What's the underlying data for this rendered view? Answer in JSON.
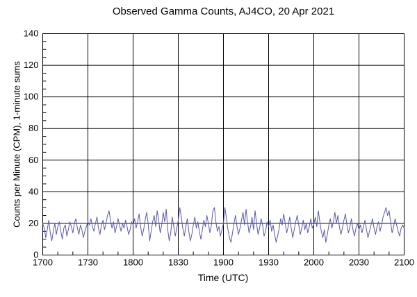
{
  "chart_data": {
    "type": "line",
    "title": "Observed Gamma Counts, AJ4CO, 20 Apr 2021",
    "xlabel": "Time (UTC)",
    "ylabel": "Counts per Minute (CPM), 1-minute sums",
    "x_tick_labels": [
      "1700",
      "1730",
      "1800",
      "1830",
      "1900",
      "1930",
      "2000",
      "2030",
      "2100"
    ],
    "xlim_minutes": [
      0,
      240
    ],
    "x_major_step_minutes": 30,
    "x_minor_step_minutes": 10,
    "x_sample_step_minutes": 1,
    "ylim": [
      0,
      140
    ],
    "y_ticks": [
      0,
      20,
      40,
      60,
      80,
      100,
      120,
      140
    ],
    "y_minor_step": 5,
    "grid": true,
    "legend": "none",
    "colors": {
      "line": "#5858b0",
      "axis": "#000000",
      "background": "#ffffff"
    },
    "series": [
      {
        "name": "Gamma counts, 1-minute sums (CPM)",
        "values": [
          20,
          17,
          11,
          16,
          22,
          14,
          9,
          15,
          20,
          13,
          18,
          21,
          15,
          10,
          17,
          19,
          12,
          16,
          21,
          18,
          14,
          20,
          23,
          17,
          13,
          19,
          16,
          11,
          15,
          18,
          21,
          19,
          23,
          18,
          15,
          20,
          24,
          17,
          13,
          19,
          22,
          16,
          20,
          25,
          28,
          22,
          17,
          21,
          14,
          18,
          23,
          19,
          15,
          20,
          17,
          22,
          18,
          13,
          16,
          21,
          19,
          23,
          17,
          21,
          26,
          18,
          12,
          16,
          22,
          27,
          20,
          9,
          15,
          21,
          25,
          18,
          28,
          22,
          14,
          19,
          27,
          21,
          29,
          16,
          9,
          14,
          24,
          18,
          12,
          17,
          22,
          30,
          24,
          17,
          12,
          18,
          23,
          15,
          9,
          13,
          19,
          24,
          17,
          21,
          15,
          10,
          16,
          22,
          18,
          25,
          20,
          14,
          19,
          28,
          30,
          21,
          15,
          18,
          12,
          16,
          20,
          30,
          23,
          16,
          11,
          8,
          14,
          20,
          25,
          18,
          13,
          17,
          22,
          27,
          19,
          29,
          21,
          14,
          18,
          24,
          16,
          28,
          20,
          13,
          17,
          23,
          19,
          12,
          15,
          21,
          18,
          22,
          15,
          19,
          13,
          8,
          12,
          17,
          23,
          19,
          26,
          20,
          14,
          18,
          24,
          17,
          11,
          16,
          21,
          25,
          19,
          13,
          17,
          22,
          16,
          20,
          14,
          18,
          23,
          17,
          19,
          24,
          18,
          28,
          21,
          15,
          11,
          16,
          8,
          13,
          19,
          23,
          17,
          21,
          27,
          20,
          25,
          18,
          13,
          17,
          22,
          26,
          19,
          14,
          18,
          23,
          16,
          12,
          17,
          20,
          16,
          19,
          14,
          18,
          22,
          16,
          11,
          15,
          19,
          23,
          17,
          13,
          18,
          21,
          15,
          19,
          24,
          27,
          30,
          25,
          28,
          21,
          14,
          18,
          23,
          19,
          15,
          12,
          17,
          19,
          17
        ]
      }
    ]
  }
}
